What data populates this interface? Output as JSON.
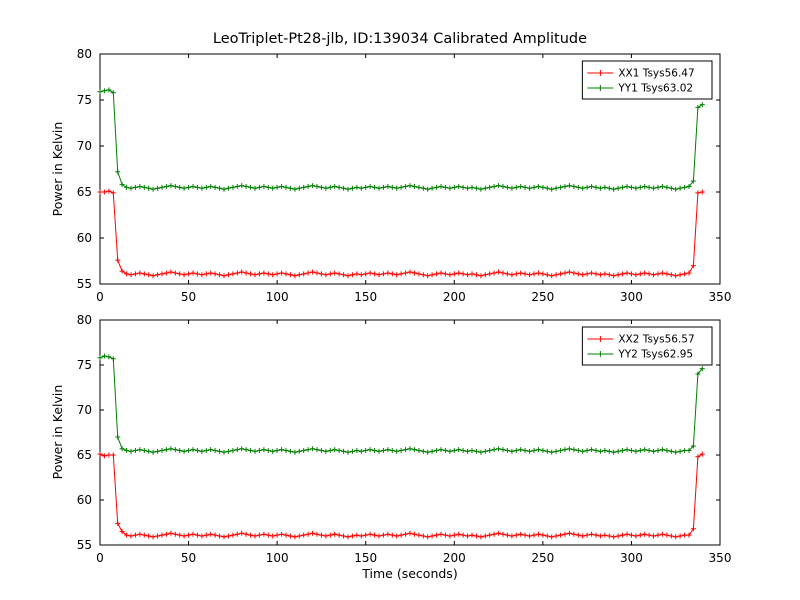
{
  "title": "LeoTriplet-Pt28-jlb, ID:139034 Calibrated Amplitude",
  "colors": {
    "xx_series": "#ff0000",
    "yy_series": "#008000",
    "axis": "#000000",
    "background": "#ffffff"
  },
  "chart_data": [
    {
      "type": "line",
      "name": "top-plot",
      "title": "",
      "xlabel": "",
      "ylabel": "Power in Kelvin",
      "xlim": [
        0,
        350
      ],
      "ylim": [
        55,
        80
      ],
      "xticks": [
        0,
        50,
        100,
        150,
        200,
        250,
        300,
        350
      ],
      "yticks": [
        55,
        60,
        65,
        70,
        75,
        80
      ],
      "grid": false,
      "legend_position": "upper right",
      "marker": "+",
      "x": [
        0,
        2.5,
        5,
        7.5,
        10,
        12.5,
        15,
        17.5,
        20,
        22.5,
        25,
        27.5,
        30,
        32.5,
        35,
        37.5,
        40,
        42.5,
        45,
        47.5,
        50,
        52.5,
        55,
        57.5,
        60,
        62.5,
        65,
        67.5,
        70,
        72.5,
        75,
        77.5,
        80,
        82.5,
        85,
        87.5,
        90,
        92.5,
        95,
        97.5,
        100,
        102.5,
        105,
        107.5,
        110,
        112.5,
        115,
        117.5,
        120,
        122.5,
        125,
        127.5,
        130,
        132.5,
        135,
        137.5,
        140,
        142.5,
        145,
        147.5,
        150,
        152.5,
        155,
        157.5,
        160,
        162.5,
        165,
        167.5,
        170,
        172.5,
        175,
        177.5,
        180,
        182.5,
        185,
        187.5,
        190,
        192.5,
        195,
        197.5,
        200,
        202.5,
        205,
        207.5,
        210,
        212.5,
        215,
        217.5,
        220,
        222.5,
        225,
        227.5,
        230,
        232.5,
        235,
        237.5,
        240,
        242.5,
        245,
        247.5,
        250,
        252.5,
        255,
        257.5,
        260,
        262.5,
        265,
        267.5,
        270,
        272.5,
        275,
        277.5,
        280,
        282.5,
        285,
        287.5,
        290,
        292.5,
        295,
        297.5,
        300,
        302.5,
        305,
        307.5,
        310,
        312.5,
        315,
        317.5,
        320,
        322.5,
        325,
        327.5,
        330,
        332.5,
        335,
        337.5,
        340
      ],
      "series": [
        {
          "name": "XX1 Tsys56.47",
          "color": "#ff0000",
          "values": [
            65.0,
            65.0,
            65.1,
            64.9,
            57.6,
            56.4,
            56.1,
            56.0,
            56.1,
            56.2,
            56.1,
            56.0,
            55.9,
            56.0,
            56.1,
            56.2,
            56.3,
            56.2,
            56.1,
            56.0,
            56.1,
            56.2,
            56.1,
            56.0,
            56.1,
            56.2,
            56.1,
            56.0,
            55.9,
            56.0,
            56.1,
            56.2,
            56.3,
            56.2,
            56.1,
            56.0,
            56.1,
            56.2,
            56.1,
            56.0,
            56.1,
            56.2,
            56.1,
            56.0,
            55.9,
            56.0,
            56.1,
            56.2,
            56.3,
            56.2,
            56.1,
            56.0,
            56.1,
            56.2,
            56.1,
            56.0,
            55.9,
            56.0,
            56.1,
            56.0,
            56.1,
            56.2,
            56.1,
            56.0,
            56.1,
            56.2,
            56.1,
            56.0,
            56.1,
            56.2,
            56.3,
            56.2,
            56.1,
            56.0,
            55.9,
            56.0,
            56.1,
            56.2,
            56.1,
            56.0,
            56.1,
            56.2,
            56.1,
            56.0,
            56.1,
            56.0,
            55.9,
            56.0,
            56.1,
            56.2,
            56.3,
            56.2,
            56.1,
            56.0,
            56.1,
            56.2,
            56.1,
            56.0,
            56.1,
            56.2,
            56.1,
            56.0,
            55.9,
            56.0,
            56.1,
            56.2,
            56.3,
            56.2,
            56.1,
            56.0,
            56.1,
            56.2,
            56.1,
            56.0,
            56.1,
            56.0,
            55.9,
            56.0,
            56.1,
            56.2,
            56.1,
            56.0,
            56.1,
            56.2,
            56.1,
            56.0,
            56.1,
            56.2,
            56.1,
            56.0,
            55.9,
            56.0,
            56.1,
            56.2,
            57.0,
            64.9,
            65.0
          ]
        },
        {
          "name": "YY1 Tsys63.02",
          "color": "#008000",
          "values": [
            75.9,
            76.0,
            76.1,
            75.8,
            67.2,
            65.8,
            65.5,
            65.4,
            65.5,
            65.6,
            65.5,
            65.4,
            65.3,
            65.4,
            65.5,
            65.6,
            65.7,
            65.6,
            65.5,
            65.4,
            65.5,
            65.6,
            65.5,
            65.4,
            65.5,
            65.6,
            65.5,
            65.4,
            65.3,
            65.4,
            65.5,
            65.6,
            65.7,
            65.6,
            65.5,
            65.4,
            65.5,
            65.6,
            65.5,
            65.4,
            65.5,
            65.6,
            65.5,
            65.4,
            65.3,
            65.4,
            65.5,
            65.6,
            65.7,
            65.6,
            65.5,
            65.4,
            65.5,
            65.6,
            65.5,
            65.4,
            65.3,
            65.4,
            65.5,
            65.4,
            65.5,
            65.6,
            65.5,
            65.4,
            65.5,
            65.6,
            65.5,
            65.4,
            65.5,
            65.6,
            65.7,
            65.6,
            65.5,
            65.4,
            65.3,
            65.4,
            65.5,
            65.6,
            65.5,
            65.4,
            65.5,
            65.6,
            65.5,
            65.4,
            65.5,
            65.4,
            65.3,
            65.4,
            65.5,
            65.6,
            65.7,
            65.6,
            65.5,
            65.4,
            65.5,
            65.6,
            65.5,
            65.4,
            65.5,
            65.6,
            65.5,
            65.4,
            65.3,
            65.4,
            65.5,
            65.6,
            65.7,
            65.6,
            65.5,
            65.4,
            65.5,
            65.6,
            65.5,
            65.4,
            65.5,
            65.4,
            65.3,
            65.4,
            65.5,
            65.6,
            65.5,
            65.4,
            65.5,
            65.6,
            65.5,
            65.4,
            65.5,
            65.6,
            65.5,
            65.4,
            65.3,
            65.4,
            65.5,
            65.6,
            66.2,
            74.2,
            74.5
          ]
        }
      ]
    },
    {
      "type": "line",
      "name": "bottom-plot",
      "title": "",
      "xlabel": "Time (seconds)",
      "ylabel": "Power in Kelvin",
      "xlim": [
        0,
        350
      ],
      "ylim": [
        55,
        80
      ],
      "xticks": [
        0,
        50,
        100,
        150,
        200,
        250,
        300,
        350
      ],
      "yticks": [
        55,
        60,
        65,
        70,
        75,
        80
      ],
      "grid": false,
      "legend_position": "upper right",
      "marker": "+",
      "x": [
        0,
        2.5,
        5,
        7.5,
        10,
        12.5,
        15,
        17.5,
        20,
        22.5,
        25,
        27.5,
        30,
        32.5,
        35,
        37.5,
        40,
        42.5,
        45,
        47.5,
        50,
        52.5,
        55,
        57.5,
        60,
        62.5,
        65,
        67.5,
        70,
        72.5,
        75,
        77.5,
        80,
        82.5,
        85,
        87.5,
        90,
        92.5,
        95,
        97.5,
        100,
        102.5,
        105,
        107.5,
        110,
        112.5,
        115,
        117.5,
        120,
        122.5,
        125,
        127.5,
        130,
        132.5,
        135,
        137.5,
        140,
        142.5,
        145,
        147.5,
        150,
        152.5,
        155,
        157.5,
        160,
        162.5,
        165,
        167.5,
        170,
        172.5,
        175,
        177.5,
        180,
        182.5,
        185,
        187.5,
        190,
        192.5,
        195,
        197.5,
        200,
        202.5,
        205,
        207.5,
        210,
        212.5,
        215,
        217.5,
        220,
        222.5,
        225,
        227.5,
        230,
        232.5,
        235,
        237.5,
        240,
        242.5,
        245,
        247.5,
        250,
        252.5,
        255,
        257.5,
        260,
        262.5,
        265,
        267.5,
        270,
        272.5,
        275,
        277.5,
        280,
        282.5,
        285,
        287.5,
        290,
        292.5,
        295,
        297.5,
        300,
        302.5,
        305,
        307.5,
        310,
        312.5,
        315,
        317.5,
        320,
        322.5,
        325,
        327.5,
        330,
        332.5,
        335,
        337.5,
        340
      ],
      "series": [
        {
          "name": "XX2 Tsys56.57",
          "color": "#ff0000",
          "values": [
            65.1,
            64.9,
            65.0,
            65.0,
            57.4,
            56.5,
            56.1,
            56.0,
            56.1,
            56.2,
            56.1,
            56.0,
            55.9,
            56.0,
            56.1,
            56.2,
            56.3,
            56.2,
            56.1,
            56.0,
            56.1,
            56.2,
            56.1,
            56.0,
            56.1,
            56.2,
            56.1,
            56.0,
            55.9,
            56.0,
            56.1,
            56.2,
            56.3,
            56.2,
            56.1,
            56.0,
            56.1,
            56.2,
            56.1,
            56.0,
            56.1,
            56.2,
            56.1,
            56.0,
            55.9,
            56.0,
            56.1,
            56.2,
            56.3,
            56.2,
            56.1,
            56.0,
            56.1,
            56.2,
            56.1,
            56.0,
            55.9,
            56.0,
            56.1,
            56.0,
            56.1,
            56.2,
            56.1,
            56.0,
            56.1,
            56.2,
            56.1,
            56.0,
            56.1,
            56.2,
            56.3,
            56.2,
            56.1,
            56.0,
            55.9,
            56.0,
            56.1,
            56.2,
            56.1,
            56.0,
            56.1,
            56.2,
            56.1,
            56.0,
            56.1,
            56.0,
            55.9,
            56.0,
            56.1,
            56.2,
            56.3,
            56.2,
            56.1,
            56.0,
            56.1,
            56.2,
            56.1,
            56.0,
            56.1,
            56.2,
            56.1,
            56.0,
            55.9,
            56.0,
            56.1,
            56.2,
            56.3,
            56.2,
            56.1,
            56.0,
            56.1,
            56.2,
            56.1,
            56.0,
            56.1,
            56.0,
            55.9,
            56.0,
            56.1,
            56.2,
            56.1,
            56.0,
            56.1,
            56.2,
            56.1,
            56.0,
            56.1,
            56.2,
            56.1,
            56.0,
            55.9,
            56.0,
            56.1,
            56.1,
            56.8,
            64.8,
            65.1
          ]
        },
        {
          "name": "YY2 Tsys62.95",
          "color": "#008000",
          "values": [
            75.8,
            76.0,
            75.9,
            75.7,
            67.0,
            65.7,
            65.5,
            65.4,
            65.5,
            65.6,
            65.5,
            65.4,
            65.3,
            65.4,
            65.5,
            65.6,
            65.7,
            65.6,
            65.5,
            65.4,
            65.5,
            65.6,
            65.5,
            65.4,
            65.5,
            65.6,
            65.5,
            65.4,
            65.3,
            65.4,
            65.5,
            65.6,
            65.7,
            65.6,
            65.5,
            65.4,
            65.5,
            65.6,
            65.5,
            65.4,
            65.5,
            65.6,
            65.5,
            65.4,
            65.3,
            65.4,
            65.5,
            65.6,
            65.7,
            65.6,
            65.5,
            65.4,
            65.5,
            65.6,
            65.5,
            65.4,
            65.3,
            65.4,
            65.5,
            65.4,
            65.5,
            65.6,
            65.5,
            65.4,
            65.5,
            65.6,
            65.5,
            65.4,
            65.5,
            65.6,
            65.7,
            65.6,
            65.5,
            65.4,
            65.3,
            65.4,
            65.5,
            65.6,
            65.5,
            65.4,
            65.5,
            65.6,
            65.5,
            65.4,
            65.5,
            65.4,
            65.3,
            65.4,
            65.5,
            65.6,
            65.7,
            65.6,
            65.5,
            65.4,
            65.5,
            65.6,
            65.5,
            65.4,
            65.5,
            65.6,
            65.5,
            65.4,
            65.3,
            65.4,
            65.5,
            65.6,
            65.7,
            65.6,
            65.5,
            65.4,
            65.5,
            65.6,
            65.5,
            65.4,
            65.5,
            65.4,
            65.3,
            65.4,
            65.5,
            65.6,
            65.5,
            65.4,
            65.5,
            65.6,
            65.5,
            65.4,
            65.5,
            65.6,
            65.5,
            65.4,
            65.3,
            65.4,
            65.5,
            65.5,
            66.0,
            74.0,
            74.6
          ]
        }
      ]
    }
  ]
}
